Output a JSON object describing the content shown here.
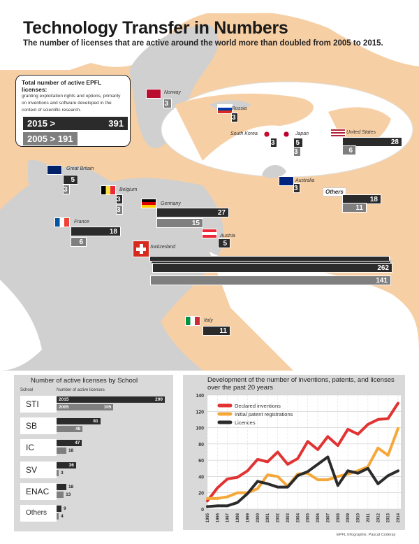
{
  "title": "Technology Transfer in Numbers",
  "subtitle": "The number of licenses that are active around the world more than doubled from 2005 to 2015.",
  "totals": {
    "heading": "Total number of active EPFL licenses:",
    "description": "granting exploitation rights and options, primarily on inventions and software developed in the context of scientific research.",
    "y2015_label": "2015 >",
    "y2015_value": "391",
    "y2005_label": "2005 > 191"
  },
  "countries": [
    {
      "name": "Norway",
      "v2015": "",
      "v2005": "3"
    },
    {
      "name": "Russia",
      "v2015": "3",
      "v2005": ""
    },
    {
      "name": "South Korea",
      "v2015": "3",
      "v2005": ""
    },
    {
      "name": "Japan",
      "v2015": "5",
      "v2005": "3"
    },
    {
      "name": "United States",
      "v2015": "28",
      "v2005": "6"
    },
    {
      "name": "Australia",
      "v2015": "3",
      "v2005": ""
    },
    {
      "name": "Others",
      "v2015": "18",
      "v2005": "11"
    },
    {
      "name": "Great Britain",
      "v2015": "5",
      "v2005": "3"
    },
    {
      "name": "Belgium",
      "v2015": "3",
      "v2005": "3"
    },
    {
      "name": "Germany",
      "v2015": "27",
      "v2005": "15"
    },
    {
      "name": "France",
      "v2015": "18",
      "v2005": "6"
    },
    {
      "name": "Austria",
      "v2015": "5",
      "v2005": ""
    },
    {
      "name": "Switzerland",
      "v2015": "262",
      "v2005": "141"
    },
    {
      "name": "Italy",
      "v2015": "11",
      "v2005": ""
    }
  ],
  "schools": {
    "title": "Number of active licenses by School",
    "col_school": "School",
    "col_count": "Number of active licenses",
    "label_2015": "2015",
    "label_2005": "2005",
    "rows": [
      {
        "name": "STI",
        "v2015": 200,
        "v2005": 105
      },
      {
        "name": "SB",
        "v2015": 81,
        "v2005": 48
      },
      {
        "name": "IC",
        "v2015": 47,
        "v2005": 18
      },
      {
        "name": "SV",
        "v2015": 36,
        "v2005": 3
      },
      {
        "name": "ENAC",
        "v2015": 18,
        "v2005": 13
      },
      {
        "name": "Others",
        "v2015": 9,
        "v2005": 4
      }
    ]
  },
  "colors": {
    "dark": "#2b2b2b",
    "grey": "#7f7f7f",
    "inventions": "#e23333",
    "patents": "#f5a83a",
    "licences": "#2b2b2b"
  },
  "chart_data": {
    "type": "line",
    "title": "Development of the number of inventions, patents, and licenses over the past 20 years",
    "ylim": [
      0,
      140
    ],
    "yticks": [
      0,
      20,
      40,
      60,
      80,
      100,
      120,
      140
    ],
    "legend": "top-left",
    "x": [
      1995,
      1996,
      1997,
      1998,
      1999,
      2000,
      2001,
      2002,
      2003,
      2004,
      2005,
      2006,
      2007,
      2008,
      2009,
      2010,
      2011,
      2012,
      2013,
      2014
    ],
    "series": [
      {
        "name": "Declared inventions",
        "color": "#e23333",
        "values": [
          10,
          26,
          37,
          39,
          47,
          61,
          58,
          70,
          55,
          62,
          83,
          73,
          89,
          78,
          98,
          92,
          104,
          110,
          111,
          130
        ]
      },
      {
        "name": "Initial patent registrations",
        "color": "#f5a83a",
        "values": [
          13,
          13,
          15,
          20,
          20,
          25,
          42,
          40,
          28,
          43,
          44,
          36,
          36,
          40,
          43,
          47,
          52,
          75,
          66,
          99
        ]
      },
      {
        "name": "Licences",
        "color": "#2b2b2b",
        "values": [
          3,
          4,
          4,
          8,
          19,
          34,
          31,
          27,
          27,
          41,
          46,
          55,
          64,
          29,
          47,
          44,
          50,
          31,
          41,
          47
        ]
      }
    ]
  },
  "credit": "EPFL Infographie, Pascal Coderay"
}
